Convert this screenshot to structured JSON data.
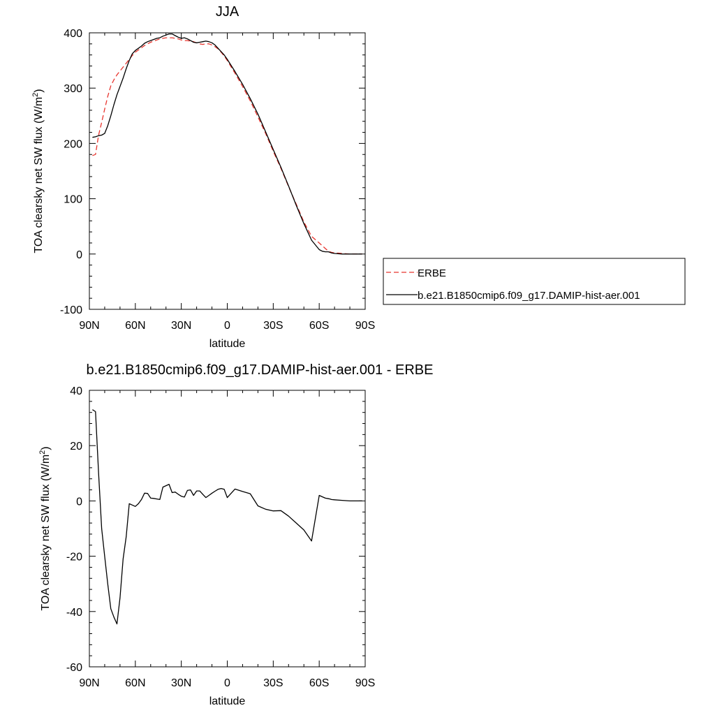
{
  "chart_data": [
    {
      "type": "line",
      "title": "JJA",
      "xlabel": "latitude",
      "ylabel": "TOA clearsky net SW flux (W/m",
      "ylabel_sup": "2",
      "ylabel_end": ")",
      "xlim": [
        90,
        -90
      ],
      "ylim": [
        -100,
        400
      ],
      "x_ticks": [
        {
          "value": 90,
          "label": "90N"
        },
        {
          "value": 60,
          "label": "60N"
        },
        {
          "value": 30,
          "label": "30N"
        },
        {
          "value": 0,
          "label": "0"
        },
        {
          "value": -30,
          "label": "30S"
        },
        {
          "value": -60,
          "label": "60S"
        },
        {
          "value": -90,
          "label": "90S"
        }
      ],
      "y_ticks": [
        -100,
        0,
        100,
        200,
        300,
        400
      ],
      "legend_position": "right",
      "series": [
        {
          "name": "ERBE",
          "color": "#e8352e",
          "dash": "dashed",
          "x": [
            88,
            86,
            84,
            82,
            80,
            78,
            76,
            74,
            72,
            70,
            68,
            66,
            64,
            62,
            60,
            58,
            56,
            54,
            52,
            50,
            48,
            46,
            44,
            42,
            40,
            38,
            36,
            34,
            32,
            30,
            28,
            26,
            24,
            22,
            20,
            18,
            16,
            14,
            12,
            10,
            8,
            6,
            4,
            2,
            0,
            -5,
            -10,
            -15,
            -20,
            -25,
            -30,
            -35,
            -40,
            -45,
            -50,
            -55,
            -60,
            -62,
            -64,
            -66,
            -67,
            -68,
            -70,
            -75,
            -80,
            -85,
            -88
          ],
          "y": [
            178,
            180,
            215,
            238,
            262,
            285,
            304,
            315,
            324,
            331,
            338,
            345,
            352,
            359,
            365,
            369,
            373,
            377,
            380,
            383,
            385,
            387,
            389,
            390,
            391,
            391,
            391,
            390,
            389,
            387,
            386,
            386,
            385,
            384,
            382,
            380,
            379,
            380,
            380,
            378,
            375,
            371,
            365,
            358,
            350,
            327,
            303,
            277,
            248,
            218,
            186,
            155,
            122,
            90,
            58,
            32,
            20,
            15,
            10,
            5,
            4,
            3,
            2,
            1,
            0,
            0,
            0
          ]
        },
        {
          "name": "b.e21.B1850cmip6.f09_g17.DAMIP-hist-aer.001",
          "color": "#000000",
          "dash": "solid",
          "x": [
            88,
            86,
            84,
            82,
            80,
            78,
            76,
            74,
            72,
            70,
            68,
            66,
            64,
            62,
            60,
            58,
            56,
            54,
            52,
            50,
            48,
            46,
            44,
            42,
            40,
            38,
            36,
            34,
            32,
            30,
            28,
            26,
            24,
            22,
            20,
            18,
            16,
            14,
            12,
            10,
            8,
            6,
            4,
            2,
            0,
            -5,
            -10,
            -15,
            -20,
            -25,
            -30,
            -35,
            -40,
            -45,
            -50,
            -55,
            -60,
            -62,
            -64,
            -66,
            -67,
            -68,
            -70,
            -75,
            -80,
            -85,
            -88
          ],
          "y": [
            211,
            212,
            214,
            215,
            218,
            232,
            250,
            270,
            288,
            303,
            318,
            335,
            350,
            362,
            368,
            372,
            376,
            381,
            384,
            386,
            388,
            390,
            391,
            394,
            396,
            398,
            398,
            395,
            392,
            390,
            391,
            389,
            386,
            383,
            382,
            383,
            384,
            385,
            384,
            382,
            378,
            372,
            366,
            360,
            352,
            330,
            307,
            281,
            253,
            221,
            189,
            157,
            123,
            88,
            55,
            25,
            8,
            5,
            4,
            4,
            3,
            2,
            1,
            0,
            0,
            0,
            0
          ]
        }
      ]
    },
    {
      "type": "line",
      "title": "b.e21.B1850cmip6.f09_g17.DAMIP-hist-aer.001 - ERBE",
      "xlabel": "latitude",
      "ylabel": "TOA clearsky net SW flux (W/m",
      "ylabel_sup": "2",
      "ylabel_end": ")",
      "xlim": [
        90,
        -90
      ],
      "ylim": [
        -60,
        40
      ],
      "x_ticks": [
        {
          "value": 90,
          "label": "90N"
        },
        {
          "value": 60,
          "label": "60N"
        },
        {
          "value": 30,
          "label": "30N"
        },
        {
          "value": 0,
          "label": "0"
        },
        {
          "value": -30,
          "label": "30S"
        },
        {
          "value": -60,
          "label": "60S"
        },
        {
          "value": -90,
          "label": "90S"
        }
      ],
      "y_ticks": [
        -60,
        -40,
        -20,
        0,
        20,
        40
      ],
      "series": [
        {
          "color": "#000000",
          "dash": "solid",
          "x": [
            88,
            86,
            84,
            82,
            80,
            78,
            76,
            74,
            72,
            70,
            68,
            66,
            64,
            62,
            60,
            58,
            56,
            54,
            52,
            50,
            48,
            46,
            44,
            42,
            40,
            38,
            36,
            34,
            32,
            30,
            28,
            26,
            24,
            22,
            20,
            18,
            16,
            14,
            12,
            10,
            8,
            6,
            4,
            2,
            0,
            -5,
            -10,
            -15,
            -20,
            -25,
            -30,
            -35,
            -40,
            -45,
            -50,
            -55,
            -60,
            -62,
            -64,
            -66,
            -67,
            -68,
            -70,
            -75,
            -80,
            -85,
            -88
          ],
          "y": [
            33,
            32.3,
            10,
            -10,
            -20,
            -30,
            -39,
            -42,
            -44.5,
            -35,
            -21,
            -13,
            -1,
            -1.5,
            -2,
            -1,
            0.5,
            2.8,
            2.7,
            1,
            0.9,
            0.7,
            0.5,
            5,
            5.5,
            6,
            3,
            3.2,
            2.4,
            1.7,
            1.4,
            3.8,
            4,
            2,
            3.6,
            3.6,
            2.4,
            1.2,
            2,
            2.8,
            3.5,
            4.2,
            4.5,
            4.2,
            1.2,
            4.3,
            3.4,
            2.6,
            -1.8,
            -3.0,
            -3.6,
            -3.5,
            -5.5,
            -8,
            -10.5,
            -14.5,
            2,
            1.5,
            1,
            0.8,
            0.7,
            0.5,
            0.4,
            0.2,
            0,
            0,
            0
          ]
        }
      ]
    }
  ]
}
